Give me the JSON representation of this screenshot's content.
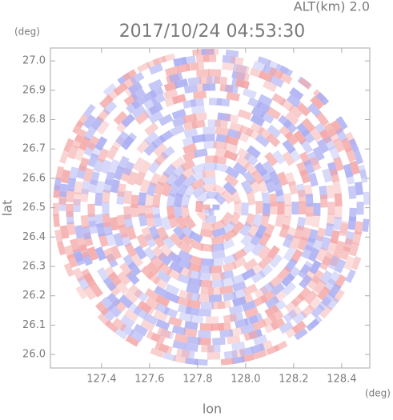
{
  "chart_data": {
    "type": "radar-ppi",
    "altitude_label": "ALT(km) 2.0",
    "title": "2017/10/24 04:53:30",
    "ylabel": "lat",
    "yunit": "(deg)",
    "xlabel": "lon",
    "xunit": "(deg)",
    "xlim": [
      127.187,
      128.517
    ],
    "ylim": [
      25.954,
      27.044
    ],
    "xticks": [
      127.4,
      127.6,
      127.8,
      {
        "value": 128,
        "label": "128.0"
      },
      128.2,
      128.4
    ],
    "yticks": [
      {
        "value": 26,
        "label": "26.0"
      },
      26.1,
      26.2,
      26.3,
      26.4,
      26.5,
      26.6,
      26.7,
      26.8,
      26.9,
      {
        "value": 27,
        "label": "27.0"
      }
    ],
    "colors": [
      "#f4a6a6",
      "#a9acf2"
    ]
  }
}
